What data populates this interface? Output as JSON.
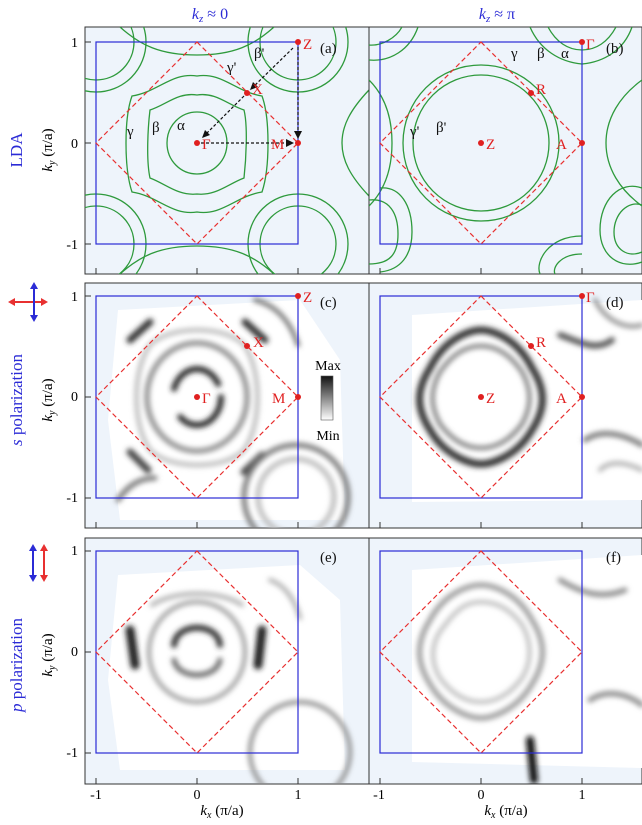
{
  "columns": {
    "left_header_var": "k",
    "left_header_sub": "z",
    "left_header_rel": " ≈ 0",
    "right_header_var": "k",
    "right_header_sub": "z",
    "right_header_rel": " ≈ π"
  },
  "rows": [
    {
      "label": "LDA"
    },
    {
      "label_italic": "s",
      "label_rest": " polarization"
    },
    {
      "label_italic": "p",
      "label_rest": " polarization"
    }
  ],
  "axes": {
    "y_label_var": "k",
    "y_label_sub": "y",
    "y_label_unit": " (π/a)",
    "x_label_var": "k",
    "x_label_sub": "x",
    "x_label_unit": " (π/a)",
    "y_ticks": [
      "1",
      "0",
      "-1"
    ],
    "x_ticks": [
      "-1",
      "0",
      "1"
    ]
  },
  "panels": {
    "a": {
      "tag": "(a)",
      "points": [
        "Z",
        "X",
        "Γ",
        "M"
      ],
      "bands": [
        "γ'",
        "β'",
        "γ",
        "β",
        "α"
      ]
    },
    "b": {
      "tag": "(b)",
      "points": [
        "Γ",
        "R",
        "Z",
        "A"
      ],
      "bands": [
        "γ",
        "β",
        "α",
        "γ'",
        "β'"
      ]
    },
    "c": {
      "tag": "(c)",
      "points": [
        "Z",
        "X",
        "Γ",
        "M"
      ]
    },
    "d": {
      "tag": "(d)",
      "points": [
        "Γ",
        "R",
        "Z",
        "A"
      ]
    },
    "e": {
      "tag": "(e)"
    },
    "f": {
      "tag": "(f)"
    }
  },
  "colorbar": {
    "max": "Max",
    "min": "Min"
  },
  "colors": {
    "zone": "#2b2bd6",
    "bz_dashed": "#e83030",
    "lda": "#2e9a3c",
    "panel_bg": "#eef4fb",
    "point": "#e02020",
    "label_blue": "#2b2bd6"
  }
}
